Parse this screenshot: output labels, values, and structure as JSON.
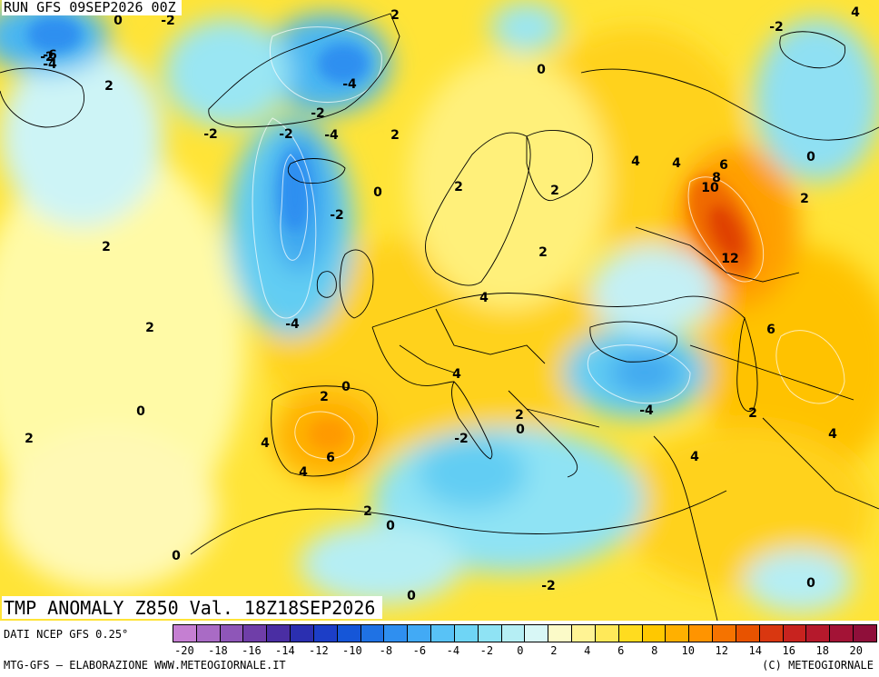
{
  "header": {
    "run_label": "RUN GFS 09SEP2026 00Z"
  },
  "title": {
    "label": "TMP ANOMALY Z850 Val. 18Z18SEP2026"
  },
  "footer": {
    "source": "DATI NCEP GFS 0.25°",
    "credits_left": "MTG-GFS — ELABORAZIONE WWW.METEOGIORNALE.IT",
    "credits_right": "(C) METEOGIORNALE"
  },
  "scale": {
    "colors": [
      "#c57fd2",
      "#a96bc5",
      "#8e56b8",
      "#6f3ea8",
      "#4a2ea3",
      "#2b2fb0",
      "#1c3ec7",
      "#1556d8",
      "#1f72e4",
      "#2f8ff0",
      "#42aaf5",
      "#58c2f6",
      "#6fd5f5",
      "#8fe3f4",
      "#b5eef4",
      "#d8f7f6",
      "#fbfac8",
      "#fff394",
      "#ffe959",
      "#ffdc1f",
      "#ffc800",
      "#ffb000",
      "#ff9400",
      "#f57300",
      "#e85300",
      "#d93710",
      "#c8231f",
      "#b5192c",
      "#a31336",
      "#8f0f3a"
    ],
    "tick_labels": [
      "-20",
      "-18",
      "-16",
      "-14",
      "-12",
      "-10",
      "-8",
      "-6",
      "-4",
      "-2",
      "0",
      "2",
      "4",
      "6",
      "8",
      "10",
      "12",
      "14",
      "16",
      "18",
      "20"
    ]
  },
  "contour_labels": [
    "-2",
    "-6",
    "-4",
    "0",
    "-2",
    "2",
    "-4",
    "2",
    "-2",
    "-2",
    "-4",
    "-2",
    "2",
    "0",
    "-2",
    "0",
    "2",
    "2",
    "2",
    "4",
    "4",
    "6",
    "8",
    "10",
    "0",
    "12",
    "2",
    "2",
    "4",
    "-2",
    "-4",
    "6",
    "0",
    "2",
    "4",
    "2",
    "0",
    "4",
    "-4",
    "2",
    "-2",
    "2",
    "0",
    "6",
    "4",
    "4",
    "4",
    "2",
    "0",
    "2",
    "0",
    "0",
    "-2",
    "0",
    "4"
  ]
}
